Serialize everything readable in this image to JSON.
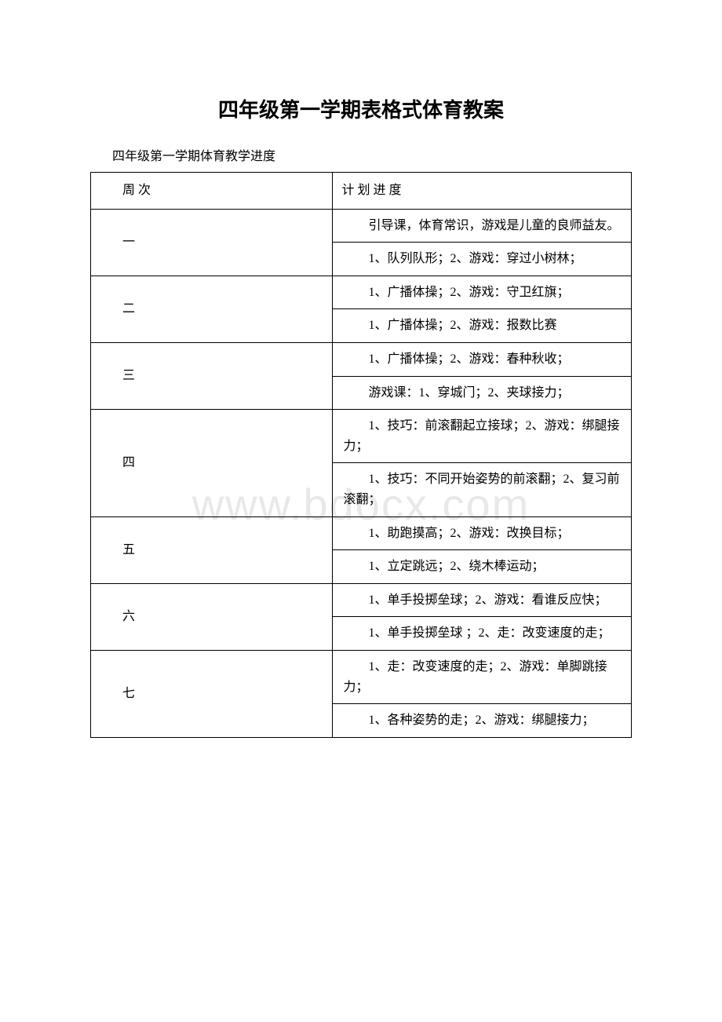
{
  "title": "四年级第一学期表格式体育教案",
  "subtitle": "四年级第一学期体育教学进度",
  "watermark": "www.bdocx.com",
  "header": {
    "week": "周 次",
    "plan": "计 划 进 度"
  },
  "rows": [
    {
      "week": "一",
      "plans": [
        "　　引导课，体育常识，游戏是儿童的良师益友。",
        "　　1、队列队形；2、游戏：穿过小树林；"
      ]
    },
    {
      "week": "二",
      "plans": [
        "　　1、广播体操；2、游戏：守卫红旗；",
        "　　1、广播体操；2、游戏：报数比赛"
      ]
    },
    {
      "week": "三",
      "plans": [
        "　　1、广播体操；2、游戏：春种秋收；",
        "　　游戏课：1、穿城门；2、夹球接力；"
      ]
    },
    {
      "week": "四",
      "plans": [
        "　　1、技巧：前滚翻起立接球；2、游戏：绑腿接力；",
        "　　1、技巧：不同开始姿势的前滚翻；2、复习前滚翻；"
      ]
    },
    {
      "week": "五",
      "plans": [
        "　　1、助跑摸高；2、游戏：改换目标；",
        "　　1、立定跳远；2、绕木棒运动；"
      ]
    },
    {
      "week": "六",
      "plans": [
        "　　1、单手投掷垒球；2、游戏：看谁反应快；",
        "　　1、单手投掷垒球 ；2、走：改变速度的走；"
      ]
    },
    {
      "week": "七",
      "plans": [
        "　　1、走：改变速度的走；2、游戏：单脚跳接力；",
        "　　1、各种姿势的走；2、游戏：绑腿接力；"
      ]
    }
  ]
}
